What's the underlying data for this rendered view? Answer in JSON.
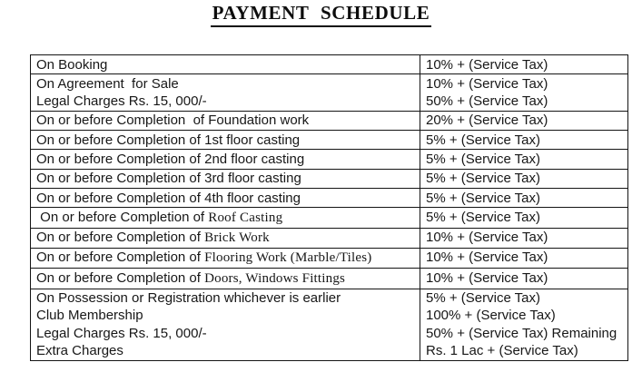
{
  "page": {
    "title": "PAYMENT SCHEDULE"
  },
  "table": {
    "rows": [
      {
        "left": [
          [
            {
              "t": "On Booking",
              "serif": false
            }
          ]
        ],
        "right": [
          "10% + (Service Tax)"
        ]
      },
      {
        "left": [
          [
            {
              "t": "On Agreement  for Sale",
              "serif": false
            }
          ],
          [
            {
              "t": "Legal Charges Rs. 15, 000/-",
              "serif": false
            }
          ]
        ],
        "right": [
          "10% + (Service Tax)",
          "50% + (Service Tax)"
        ]
      },
      {
        "left": [
          [
            {
              "t": "On or before Completion  of Foundation work",
              "serif": false
            }
          ]
        ],
        "right": [
          "20% + (Service Tax)"
        ]
      },
      {
        "left": [
          [
            {
              "t": "On or before Completion of 1st floor casting",
              "serif": false
            }
          ]
        ],
        "right": [
          "5% + (Service Tax)"
        ]
      },
      {
        "left": [
          [
            {
              "t": "On or before Completion of 2nd floor casting",
              "serif": false
            }
          ]
        ],
        "right": [
          "5% + (Service Tax)"
        ]
      },
      {
        "left": [
          [
            {
              "t": "On or before Completion of 3rd floor casting",
              "serif": false
            }
          ]
        ],
        "right": [
          "5% + (Service Tax)"
        ]
      },
      {
        "left": [
          [
            {
              "t": "On or before Completion of 4th floor casting",
              "serif": false
            }
          ]
        ],
        "right": [
          "5% + (Service Tax)"
        ]
      },
      {
        "left": [
          [
            {
              "t": " On or before Completion of ",
              "serif": false
            },
            {
              "t": "Roof Casting",
              "serif": true
            }
          ]
        ],
        "right": [
          "5% + (Service Tax)"
        ]
      },
      {
        "left": [
          [
            {
              "t": "On or before Completion of ",
              "serif": false
            },
            {
              "t": "Brick Work",
              "serif": true
            }
          ]
        ],
        "right": [
          "10% + (Service Tax)"
        ]
      },
      {
        "left": [
          [
            {
              "t": "On or before Completion of ",
              "serif": false
            },
            {
              "t": "Flooring Work (Marble/Tiles)",
              "serif": true
            }
          ]
        ],
        "right": [
          "10% + (Service Tax)"
        ]
      },
      {
        "left": [
          [
            {
              "t": "On or before Completion of ",
              "serif": false
            },
            {
              "t": "Doors, Windows Fittings",
              "serif": true
            }
          ]
        ],
        "right": [
          "10% + (Service Tax)"
        ]
      },
      {
        "left": [
          [
            {
              "t": "On Possession or Registration whichever is earlier",
              "serif": false
            }
          ],
          [
            {
              "t": "Club Membership",
              "serif": false
            }
          ],
          [
            {
              "t": "Legal Charges Rs. 15, 000/-",
              "serif": false
            }
          ],
          [
            {
              "t": "Extra Charges",
              "serif": false
            }
          ]
        ],
        "right": [
          "5% + (Service Tax)",
          "100% + (Service Tax)",
          "50% + (Service Tax) Remaining",
          "Rs. 1 Lac + (Service Tax)"
        ]
      }
    ]
  }
}
